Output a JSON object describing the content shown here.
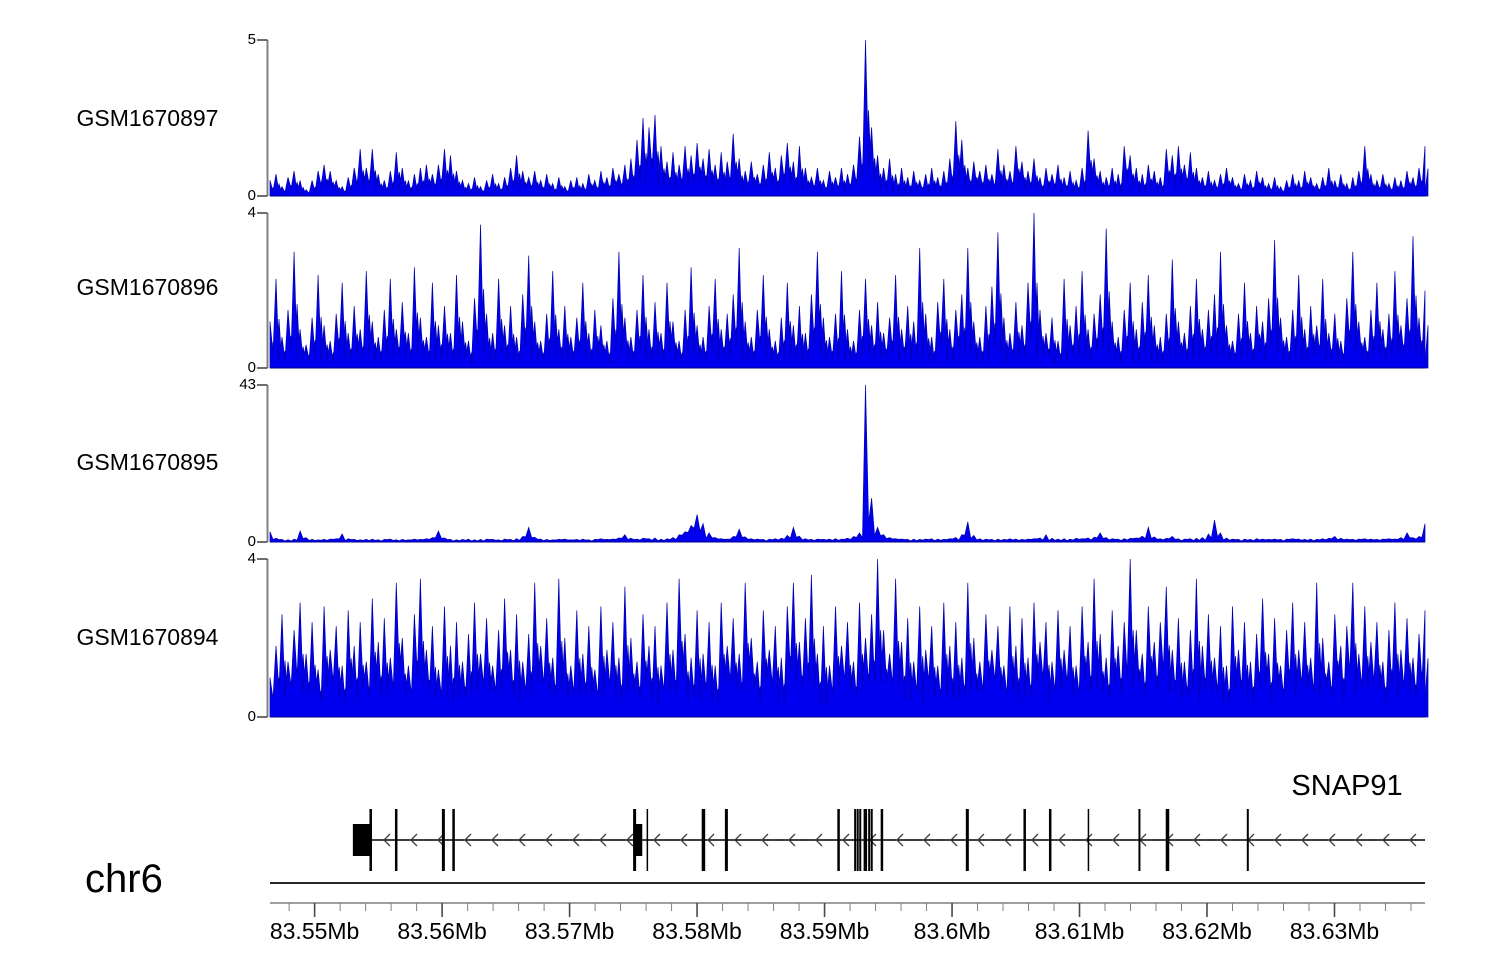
{
  "figure": {
    "chromosome_label": "chr6",
    "gene_label": "SNAP91"
  },
  "chart_data": {
    "type": "area",
    "title": "",
    "legend_position": "none",
    "grid": false,
    "genome_axis": {
      "chromosome": "chr6",
      "start_mb": 83.5465,
      "end_mb": 83.6371,
      "unit": "Mb",
      "major_ticks_mb": [
        83.55,
        83.56,
        83.57,
        83.58,
        83.59,
        83.6,
        83.61,
        83.62,
        83.63
      ],
      "major_tick_labels": [
        "83.55Mb",
        "83.56Mb",
        "83.57Mb",
        "83.58Mb",
        "83.59Mb",
        "83.6Mb",
        "83.61Mb",
        "83.62Mb",
        "83.63Mb"
      ],
      "minor_tick_start_mb": 83.548,
      "minor_tick_step_mb": 0.002
    },
    "tracks": [
      {
        "name": "GSM1670897",
        "ylim": [
          0,
          5
        ],
        "y_top_label": "5",
        "y_bottom_label": "0",
        "color": "#0000EE",
        "stroke": "#0000B0",
        "valley": 0.3,
        "dense_underlay": true,
        "values": [
          0.5,
          0.7,
          0.3,
          0.6,
          0.8,
          0.5,
          0.2,
          0.5,
          0.8,
          1.0,
          0.8,
          0.5,
          0.3,
          0.6,
          0.9,
          1.5,
          0.9,
          1.5,
          0.7,
          0.5,
          0.8,
          1.4,
          0.9,
          0.5,
          0.7,
          0.9,
          1.0,
          0.7,
          1.0,
          1.5,
          1.3,
          0.8,
          0.5,
          0.4,
          0.6,
          0.3,
          0.5,
          0.7,
          0.4,
          0.6,
          0.9,
          1.3,
          0.8,
          0.6,
          0.8,
          0.5,
          0.7,
          0.4,
          0.6,
          0.3,
          0.5,
          0.6,
          0.4,
          0.7,
          0.5,
          0.8,
          0.6,
          0.9,
          0.7,
          1.0,
          1.2,
          1.8,
          2.5,
          2.2,
          2.6,
          1.6,
          1.1,
          1.4,
          1.0,
          1.6,
          1.3,
          1.7,
          1.2,
          1.5,
          1.0,
          1.4,
          1.1,
          2.0,
          1.2,
          0.8,
          1.1,
          0.7,
          1.0,
          1.4,
          0.9,
          1.3,
          1.7,
          1.1,
          1.6,
          0.9,
          0.6,
          0.9,
          0.5,
          0.8,
          0.6,
          0.9,
          0.7,
          1.0,
          1.9,
          5.0,
          2.2,
          1.3,
          0.9,
          1.2,
          0.7,
          0.9,
          0.6,
          0.8,
          0.5,
          0.7,
          0.9,
          0.6,
          0.8,
          1.2,
          2.4,
          1.8,
          0.9,
          1.1,
          0.8,
          1.0,
          0.7,
          1.5,
          1.0,
          0.8,
          1.6,
          1.1,
          0.8,
          1.2,
          0.6,
          0.9,
          0.7,
          1.0,
          0.6,
          0.8,
          0.5,
          0.9,
          2.1,
          1.2,
          0.8,
          0.6,
          0.9,
          0.7,
          1.6,
          1.3,
          0.9,
          0.7,
          1.0,
          0.8,
          0.6,
          1.5,
          1.3,
          1.6,
          1.0,
          1.4,
          0.9,
          0.6,
          0.8,
          0.5,
          0.7,
          0.9,
          0.6,
          0.4,
          0.7,
          0.5,
          0.8,
          0.6,
          0.4,
          0.6,
          0.3,
          0.5,
          0.7,
          0.5,
          0.8,
          0.6,
          0.4,
          0.6,
          0.9,
          0.5,
          0.7,
          0.4,
          0.6,
          0.8,
          1.6,
          0.7,
          0.5,
          0.7,
          0.4,
          0.6,
          0.5,
          0.8,
          0.6,
          0.9,
          1.6
        ]
      },
      {
        "name": "GSM1670896",
        "ylim": [
          0,
          4
        ],
        "y_top_label": "4",
        "y_bottom_label": "0",
        "color": "#0000EE",
        "stroke": "#0000B0",
        "valley": 0.25,
        "dense_underlay": true,
        "values": [
          1.2,
          2.3,
          0.8,
          1.5,
          3.0,
          1.0,
          0.6,
          1.3,
          2.4,
          1.1,
          0.7,
          1.4,
          2.2,
          0.9,
          1.6,
          1.0,
          2.5,
          1.2,
          0.8,
          1.5,
          2.3,
          1.0,
          1.7,
          0.9,
          2.6,
          1.3,
          0.8,
          2.2,
          1.1,
          1.6,
          0.9,
          2.4,
          1.2,
          0.7,
          1.8,
          3.7,
          1.4,
          0.9,
          2.3,
          1.1,
          1.6,
          0.8,
          1.9,
          2.9,
          1.2,
          0.7,
          1.4,
          2.5,
          1.0,
          1.6,
          0.8,
          1.3,
          2.2,
          0.9,
          1.5,
          1.1,
          0.7,
          1.8,
          3.0,
          1.3,
          0.8,
          1.5,
          2.4,
          1.0,
          1.7,
          0.9,
          2.2,
          1.2,
          0.7,
          1.5,
          2.6,
          1.1,
          0.8,
          1.6,
          2.3,
          1.0,
          1.4,
          1.9,
          3.1,
          1.2,
          0.8,
          1.5,
          2.4,
          1.0,
          0.7,
          1.3,
          2.2,
          1.1,
          1.6,
          0.9,
          1.9,
          3.0,
          1.3,
          0.8,
          1.4,
          2.5,
          1.0,
          0.7,
          1.5,
          2.3,
          1.1,
          1.7,
          0.9,
          1.3,
          2.4,
          1.0,
          1.6,
          1.2,
          3.1,
          1.4,
          0.8,
          1.7,
          2.3,
          1.0,
          1.5,
          1.9,
          3.1,
          1.2,
          0.8,
          1.6,
          2.1,
          3.5,
          1.3,
          0.9,
          1.7,
          1.1,
          2.2,
          4.0,
          1.5,
          0.9,
          1.3,
          0.7,
          2.3,
          1.1,
          1.6,
          2.5,
          1.0,
          1.4,
          1.9,
          3.6,
          1.2,
          0.8,
          1.5,
          2.2,
          1.0,
          1.7,
          2.4,
          1.1,
          0.8,
          1.4,
          2.8,
          1.2,
          0.9,
          1.6,
          2.3,
          1.0,
          1.5,
          1.9,
          3.0,
          1.1,
          0.7,
          1.4,
          2.2,
          0.9,
          1.6,
          1.2,
          1.8,
          3.3,
          1.3,
          0.8,
          1.5,
          2.4,
          1.0,
          1.6,
          1.1,
          2.3,
          0.9,
          1.4,
          0.7,
          1.8,
          3.0,
          1.2,
          0.8,
          1.5,
          2.2,
          1.0,
          1.4,
          2.5,
          1.1,
          1.8,
          3.4,
          1.3,
          2.0
        ]
      },
      {
        "name": "GSM1670895",
        "ylim": [
          0,
          43
        ],
        "y_top_label": "43",
        "y_bottom_label": "0",
        "color": "#0000EE",
        "stroke": "#0000B0",
        "valley": 0.8,
        "dense_underlay": false,
        "values": [
          2.8,
          1.0,
          0.7,
          0.6,
          0.8,
          3.0,
          1.2,
          0.7,
          0.6,
          0.7,
          0.8,
          0.9,
          2.2,
          0.9,
          0.7,
          0.6,
          0.7,
          0.8,
          0.6,
          0.7,
          0.8,
          0.6,
          0.7,
          0.6,
          0.8,
          0.7,
          0.9,
          1.2,
          3.0,
          1.1,
          0.7,
          0.6,
          0.7,
          0.8,
          0.6,
          0.7,
          0.8,
          0.7,
          0.6,
          0.8,
          0.7,
          0.9,
          1.5,
          4.0,
          1.3,
          0.8,
          0.7,
          0.6,
          0.7,
          0.8,
          0.6,
          0.7,
          0.8,
          0.6,
          0.7,
          0.9,
          0.7,
          0.8,
          1.1,
          2.0,
          1.0,
          0.8,
          1.0,
          0.9,
          1.1,
          0.8,
          0.9,
          1.2,
          2.0,
          2.8,
          4.5,
          7.5,
          5.0,
          2.5,
          1.2,
          0.9,
          0.8,
          1.5,
          3.5,
          1.4,
          0.9,
          0.8,
          0.7,
          0.8,
          0.9,
          1.0,
          1.8,
          4.0,
          1.6,
          0.9,
          0.7,
          0.8,
          0.7,
          0.8,
          0.9,
          0.8,
          1.0,
          1.5,
          2.5,
          43,
          12,
          4.0,
          2.0,
          1.2,
          0.9,
          0.8,
          0.7,
          0.8,
          0.7,
          0.8,
          0.9,
          0.8,
          0.7,
          0.9,
          1.2,
          2.0,
          5.5,
          1.8,
          0.9,
          0.8,
          0.7,
          0.8,
          0.7,
          0.9,
          0.8,
          0.7,
          0.8,
          0.9,
          1.1,
          2.0,
          1.0,
          0.8,
          0.9,
          0.8,
          1.0,
          0.9,
          1.1,
          1.3,
          2.5,
          1.2,
          0.9,
          0.8,
          0.9,
          1.0,
          1.1,
          1.6,
          4.0,
          1.4,
          0.9,
          1.0,
          1.5,
          0.9,
          0.8,
          0.9,
          1.0,
          1.2,
          2.2,
          6.0,
          2.5,
          1.1,
          0.8,
          0.7,
          0.8,
          0.7,
          0.9,
          0.8,
          0.7,
          0.8,
          0.7,
          0.8,
          0.9,
          0.8,
          0.7,
          0.8,
          0.7,
          0.9,
          1.0,
          1.5,
          1.0,
          0.8,
          0.7,
          0.8,
          0.9,
          0.8,
          0.7,
          0.8,
          0.9,
          0.8,
          1.2,
          2.5,
          1.2,
          1.5,
          5.0
        ]
      },
      {
        "name": "GSM1670894",
        "ylim": [
          0,
          4
        ],
        "y_top_label": "4",
        "y_bottom_label": "0",
        "color": "#0000EE",
        "stroke": "#0000B0",
        "valley": 0.4,
        "dense_underlay": true,
        "values": [
          1.0,
          1.8,
          2.6,
          1.4,
          2.2,
          2.9,
          1.6,
          2.4,
          1.2,
          2.8,
          1.7,
          2.3,
          1.3,
          2.7,
          1.8,
          2.4,
          1.4,
          3.0,
          1.9,
          2.5,
          1.5,
          3.4,
          2.0,
          1.3,
          2.6,
          3.5,
          1.7,
          2.3,
          1.2,
          2.8,
          1.8,
          2.4,
          1.4,
          2.1,
          2.9,
          1.6,
          2.5,
          1.3,
          2.2,
          3.0,
          1.7,
          2.6,
          1.4,
          2.1,
          3.4,
          1.8,
          2.5,
          1.5,
          3.5,
          2.0,
          1.3,
          2.7,
          1.6,
          2.3,
          1.2,
          2.8,
          1.7,
          2.4,
          1.5,
          3.3,
          2.0,
          1.4,
          2.6,
          1.8,
          2.3,
          1.3,
          2.9,
          1.7,
          3.5,
          2.1,
          1.5,
          2.7,
          1.6,
          2.4,
          1.3,
          2.9,
          1.8,
          2.5,
          1.6,
          3.4,
          2.0,
          1.4,
          2.7,
          1.7,
          2.3,
          1.5,
          2.8,
          3.4,
          1.9,
          2.5,
          3.6,
          1.6,
          2.3,
          1.3,
          2.8,
          1.8,
          2.4,
          1.4,
          2.9,
          2.0,
          2.6,
          4.0,
          2.2,
          1.6,
          3.5,
          1.9,
          2.5,
          1.4,
          2.8,
          1.7,
          2.3,
          1.3,
          2.9,
          1.8,
          2.4,
          1.5,
          3.4,
          2.0,
          1.4,
          2.6,
          1.7,
          2.3,
          1.3,
          2.8,
          1.8,
          2.5,
          1.5,
          2.9,
          1.9,
          2.4,
          1.4,
          2.7,
          1.7,
          2.3,
          1.3,
          2.8,
          1.9,
          3.5,
          2.1,
          1.5,
          2.7,
          1.8,
          2.4,
          4.0,
          2.2,
          1.6,
          2.8,
          1.9,
          2.4,
          3.3,
          1.7,
          2.5,
          1.4,
          2.2,
          3.5,
          1.8,
          2.6,
          1.5,
          2.3,
          1.3,
          2.8,
          1.7,
          2.4,
          1.4,
          2.1,
          3.0,
          1.6,
          2.5,
          1.3,
          2.2,
          2.9,
          1.7,
          2.4,
          1.5,
          3.4,
          2.0,
          1.4,
          2.6,
          1.8,
          2.3,
          3.4,
          1.6,
          2.8,
          1.9,
          2.4,
          1.4,
          2.2,
          2.9,
          1.7,
          2.5,
          1.5,
          2.1,
          2.7
        ]
      }
    ],
    "gene_track": {
      "gene_name": "SNAP91",
      "strand": "-",
      "exon_bars": [
        {
          "mb": 83.5544,
          "w": 2.5
        },
        {
          "mb": 83.5564,
          "w": 2.5
        },
        {
          "mb": 83.5601,
          "w": 3
        },
        {
          "mb": 83.5609,
          "w": 2.5
        },
        {
          "mb": 83.5751,
          "w": 3
        },
        {
          "mb": 83.5761,
          "w": 1.5
        },
        {
          "mb": 83.5805,
          "w": 3.5
        },
        {
          "mb": 83.5823,
          "w": 3
        },
        {
          "mb": 83.5911,
          "w": 2.5
        },
        {
          "mb": 83.5924,
          "w": 2
        },
        {
          "mb": 83.5926,
          "w": 2
        },
        {
          "mb": 83.5928,
          "w": 2
        },
        {
          "mb": 83.5932,
          "w": 3.5
        },
        {
          "mb": 83.5935,
          "w": 2
        },
        {
          "mb": 83.5937,
          "w": 2
        },
        {
          "mb": 83.5945,
          "w": 2.5
        },
        {
          "mb": 83.6012,
          "w": 3
        },
        {
          "mb": 83.6057,
          "w": 2.5
        },
        {
          "mb": 83.6077,
          "w": 2.5
        },
        {
          "mb": 83.6107,
          "w": 1.5
        },
        {
          "mb": 83.6147,
          "w": 2
        },
        {
          "mb": 83.6169,
          "w": 3.5
        },
        {
          "mb": 83.6232,
          "w": 2
        }
      ],
      "utr_boxes_mb": [
        [
          83.553,
          83.5545
        ],
        [
          83.575,
          83.5757
        ]
      ]
    }
  }
}
